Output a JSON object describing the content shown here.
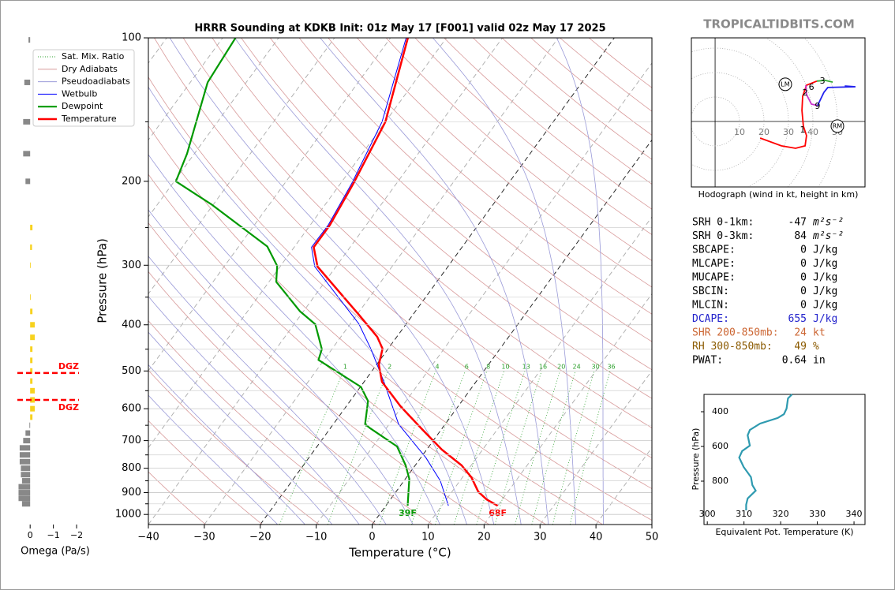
{
  "site": "TROPICALTIDBITS.COM",
  "chart_data": [
    {
      "type": "skewt",
      "title": "HRRR Sounding at KDKB Init: 01z May 17 [F001] valid 02z May 17 2025",
      "xlabel": "Temperature (°C)",
      "ylabel": "Pressure (hPa)",
      "xlim": [
        -40,
        50
      ],
      "ylim": [
        1050,
        100
      ],
      "log_y": true,
      "xticks": [
        {
          "value": -40,
          "label": "−40"
        },
        {
          "value": -30,
          "label": "−30"
        },
        {
          "value": -20,
          "label": "−20"
        },
        {
          "value": -10,
          "label": "−10"
        },
        0,
        10,
        20,
        30,
        40,
        50
      ],
      "yticks": [
        100,
        200,
        300,
        400,
        500,
        600,
        700,
        800,
        900,
        1000
      ],
      "yminor": [
        150,
        250,
        350,
        450,
        550,
        650,
        750,
        850,
        950
      ],
      "isotherms": [
        -100,
        -90,
        -80,
        -70,
        -60,
        -50,
        -40,
        -30,
        -20,
        -10,
        0,
        10,
        20,
        30,
        40,
        50
      ],
      "highlight_isotherms": [
        -20,
        0
      ],
      "mixing_ratio": {
        "name": "Sat. Mix. Ratio",
        "color": "#2ca02c",
        "values": [
          1,
          2,
          4,
          6,
          8,
          10,
          13,
          16,
          20,
          24,
          30,
          36
        ]
      },
      "dry_adiabats": {
        "name": "Dry Adiabats",
        "color": "#d89a9a",
        "theta": [
          240,
          250,
          260,
          270,
          280,
          290,
          300,
          310,
          320,
          330,
          340,
          350,
          360,
          370,
          380,
          390,
          400,
          410,
          420,
          430,
          440,
          450,
          460,
          470,
          480
        ]
      },
      "pseudoadiabats": {
        "name": "Pseudoadiabats",
        "color": "#9a9ad8",
        "t1000": [
          -20,
          -15,
          -10,
          -5,
          0,
          5,
          10,
          15,
          20,
          25,
          30,
          35,
          40
        ]
      },
      "series": [
        {
          "name": "Wetbulb",
          "color": "#0000ff",
          "width": 1,
          "pressure": [
            959,
            850,
            760,
            647,
            529,
            450,
            398,
            302,
            275,
            247,
            202,
            150,
            100
          ],
          "values": [
            11.2,
            6.5,
            0.9,
            -8.3,
            -16.3,
            -23,
            -28.5,
            -43.8,
            -46.9,
            -46.8,
            -48,
            -50.6,
            -57.2
          ]
        },
        {
          "name": "Dewpoint",
          "color": "#009900",
          "width": 2.2,
          "surface_label": "39F",
          "pressure": [
            959,
            842,
            789,
            720,
            660,
            647,
            578,
            540,
            474,
            450,
            399,
            375,
            325,
            301,
            274,
            224,
            200,
            175,
            124,
            100
          ],
          "values": [
            3.9,
            0.7,
            -1.7,
            -5.7,
            -12.8,
            -14.3,
            -16.8,
            -19.9,
            -31,
            -31.8,
            -36.2,
            -40.6,
            -48.7,
            -50.6,
            -54.9,
            -70.2,
            -79.7,
            -81.3,
            -86.9,
            -87.7
          ]
        },
        {
          "name": "Temperature",
          "color": "#ff0000",
          "width": 2.5,
          "surface_label": "68F",
          "pressure": [
            959,
            930,
            896,
            836,
            789,
            731,
            660,
            593,
            527,
            485,
            449,
            424,
            382,
            302,
            275,
            247,
            202,
            150,
            100
          ],
          "values": [
            20,
            17.2,
            14.7,
            11.6,
            8.3,
            2.7,
            -3.7,
            -10.3,
            -16.8,
            -19.6,
            -21,
            -23.5,
            -29.5,
            -43.3,
            -46.5,
            -46.5,
            -47.7,
            -50,
            -56.9
          ]
        }
      ],
      "legend": "upper left"
    },
    {
      "type": "omega",
      "xlabel": "Omega (Pa/s)",
      "xlim": [
        0.55,
        -2.1
      ],
      "ylim": [
        1050,
        100
      ],
      "xticks": [
        0,
        {
          "value": -1,
          "label": "−1"
        },
        {
          "value": -2,
          "label": "−2"
        }
      ],
      "color_positive": "#888888",
      "color_negative": "#f7d21e",
      "pressure": [
        101,
        124,
        150,
        175,
        200,
        250,
        275,
        300,
        350,
        375,
        400,
        425,
        450,
        475,
        500,
        525,
        550,
        575,
        600,
        625,
        650,
        675,
        700,
        725,
        750,
        775,
        800,
        825,
        850,
        875,
        900,
        925,
        950
      ],
      "values": [
        0.07,
        0.25,
        0.3,
        0.3,
        0.2,
        -0.1,
        -0.08,
        -0.03,
        -0.03,
        -0.1,
        -0.2,
        -0.2,
        -0.1,
        -0.1,
        -0.1,
        -0.1,
        -0.2,
        -0.2,
        -0.2,
        -0.1,
        0.03,
        0.2,
        0.3,
        0.45,
        0.45,
        0.45,
        0.4,
        0.4,
        0.35,
        0.5,
        0.5,
        0.5,
        0.35
      ],
      "dgz": {
        "label": "DGZ",
        "color": "#ff0000",
        "pressure": [
          505,
          575
        ]
      }
    },
    {
      "type": "hodograph",
      "caption": "Hodograph (wind in kt, height in km)",
      "xlim": [
        -9.7,
        61.3
      ],
      "ylim": [
        -26.8,
        34.2
      ],
      "rings": [
        10,
        20,
        30,
        40,
        50
      ],
      "series": [
        {
          "color": "#ff0000",
          "u": [
            18.4,
            27.1,
            32.9,
            36.8,
            37.4,
            36.1,
            35.5,
            35.8,
            37.4,
            41.6
          ],
          "v": [
            -6.8,
            -10,
            -11,
            -10,
            -5.8,
            -1.9,
            4.5,
            10.3,
            14.8,
            16.5
          ]
        },
        {
          "color": "#33aa33",
          "u": [
            41.6,
            45,
            48.1
          ],
          "v": [
            16.5,
            16.8,
            16.1
          ]
        },
        {
          "color": "#cc33cc",
          "u": [
            37.1,
            37.4,
            39.4,
            41.9
          ],
          "v": [
            14.8,
            11,
            7.1,
            6.5
          ]
        },
        {
          "color": "#2222ee",
          "u": [
            41.9,
            44.5,
            46.1,
            57.4,
            53
          ],
          "v": [
            6.5,
            11.9,
            13.9,
            14.2,
            14.5
          ]
        }
      ],
      "height_labels": {
        "text": [
          1,
          2,
          3,
          6,
          9
        ],
        "u": [
          35.8,
          36.8,
          43.9,
          39.4,
          41.9
        ],
        "v": [
          -3.5,
          11.6,
          16.5,
          13.9,
          6.1
        ]
      },
      "storm_motion": [
        {
          "label": "LM",
          "u": 28.7,
          "v": 15.2
        },
        {
          "label": "RM",
          "u": 50,
          "v": -1.9
        }
      ]
    },
    {
      "type": "line",
      "xlabel": "Equivalent Pot. Temperature (K)",
      "ylabel": "Pressure (hPa)",
      "xlim": [
        299.1,
        343
      ],
      "ylim": [
        1050,
        300
      ],
      "xticks": [
        300,
        310,
        320,
        330,
        340
      ],
      "yticks": [
        400,
        600,
        800
      ],
      "color": "#2e9ab0",
      "values": [
        323.1,
        322,
        321.6,
        320.9,
        319.2,
        314.4,
        311.6,
        311,
        311.6,
        309.5,
        308.7,
        309.9,
        311.9,
        312.3,
        313.2,
        311,
        310.6,
        310.6
      ],
      "pressure": [
        300,
        323,
        382,
        414,
        436,
        468,
        505,
        536,
        595,
        627,
        664,
        718,
        777,
        823,
        855,
        900,
        936,
        968
      ]
    }
  ],
  "stats": [
    {
      "label": "SRH 0-1km:",
      "value": -47,
      "unit": "m²s⁻²",
      "color": "#000000"
    },
    {
      "label": "SRH 0-3km:",
      "value": 84,
      "unit": "m²s⁻²",
      "color": "#000000"
    },
    {
      "label": "SBCAPE:",
      "value": 0,
      "unit": "J/kg",
      "color": "#000000"
    },
    {
      "label": "MLCAPE:",
      "value": 0,
      "unit": "J/kg",
      "color": "#000000"
    },
    {
      "label": "MUCAPE:",
      "value": 0,
      "unit": "J/kg",
      "color": "#000000"
    },
    {
      "label": "SBCIN:",
      "value": 0,
      "unit": "J/kg",
      "color": "#000000"
    },
    {
      "label": "MLCIN:",
      "value": 0,
      "unit": "J/kg",
      "color": "#000000"
    },
    {
      "label": "DCAPE:",
      "value": 655,
      "unit": "J/kg",
      "color": "#2222cc"
    },
    {
      "label": "SHR 200-850mb:",
      "value": 24,
      "unit": "kt",
      "color": "#cc6633"
    },
    {
      "label": "RH 300-850mb:",
      "value": 49,
      "unit": "%",
      "color": "#8b5a00"
    },
    {
      "label": "PWAT:",
      "value": 0.64,
      "unit": "in",
      "color": "#000000"
    }
  ]
}
